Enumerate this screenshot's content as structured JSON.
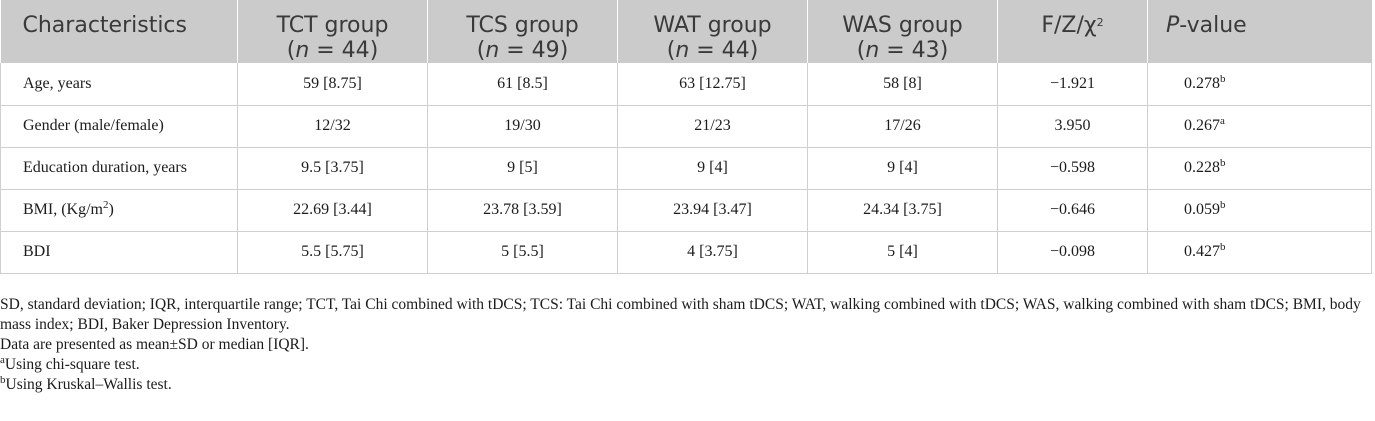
{
  "header": {
    "characteristics": "Characteristics",
    "groups": [
      {
        "name": "TCT group",
        "n_var": "n",
        "n_text": " = 44"
      },
      {
        "name": "TCS group",
        "n_var": "n",
        "n_text": " = 49"
      },
      {
        "name": "WAT group",
        "n_var": "n",
        "n_text": " = 44"
      },
      {
        "name": "WAS group",
        "n_var": "n",
        "n_text": " = 43"
      }
    ],
    "stat": "F/Z/χ",
    "stat_sup": "2",
    "p_italic": "P",
    "p_rest": "-value"
  },
  "rows": [
    {
      "label": "Age, years",
      "label_sup": "",
      "label_end": "",
      "tct": "59 [8.75]",
      "tcs": "61 [8.5]",
      "wat": "63 [12.75]",
      "was": "58 [8]",
      "stat": "−1.921",
      "p": "0.278",
      "p_sup": "b"
    },
    {
      "label": "Gender (male/female)",
      "label_sup": "",
      "label_end": "",
      "tct": "12/32",
      "tcs": "19/30",
      "wat": "21/23",
      "was": "17/26",
      "stat": "3.950",
      "p": "0.267",
      "p_sup": "a"
    },
    {
      "label": "Education duration, years",
      "label_sup": "",
      "label_end": "",
      "tct": "9.5 [3.75]",
      "tcs": "9 [5]",
      "wat": "9 [4]",
      "was": "9 [4]",
      "stat": "−0.598",
      "p": "0.228",
      "p_sup": "b"
    },
    {
      "label": "BMI, (Kg/m",
      "label_sup": "2",
      "label_end": ")",
      "tct": "22.69 [3.44]",
      "tcs": "23.78 [3.59]",
      "wat": "23.94 [3.47]",
      "was": "24.34 [3.75]",
      "stat": "−0.646",
      "p": "0.059",
      "p_sup": "b"
    },
    {
      "label": "BDI",
      "label_sup": "",
      "label_end": "",
      "tct": "5.5 [5.75]",
      "tcs": "5 [5.5]",
      "wat": "4 [3.75]",
      "was": "5 [4]",
      "stat": "−0.098",
      "p": "0.427",
      "p_sup": "b"
    }
  ],
  "notes": {
    "abbreviations": "SD, standard deviation; IQR, interquartile range; TCT, Tai Chi combined with tDCS; TCS: Tai Chi combined with sham tDCS; WAT, walking combined with tDCS; WAS, walking combined with sham tDCS; BMI, body mass index; BDI, Baker Depression Inventory.",
    "presentation": "Data are presented as mean±SD or median [IQR].",
    "footnote_a_mark": "a",
    "footnote_a": "Using chi-square test.",
    "footnote_b_mark": "b",
    "footnote_b": "Using Kruskal–Wallis test."
  }
}
